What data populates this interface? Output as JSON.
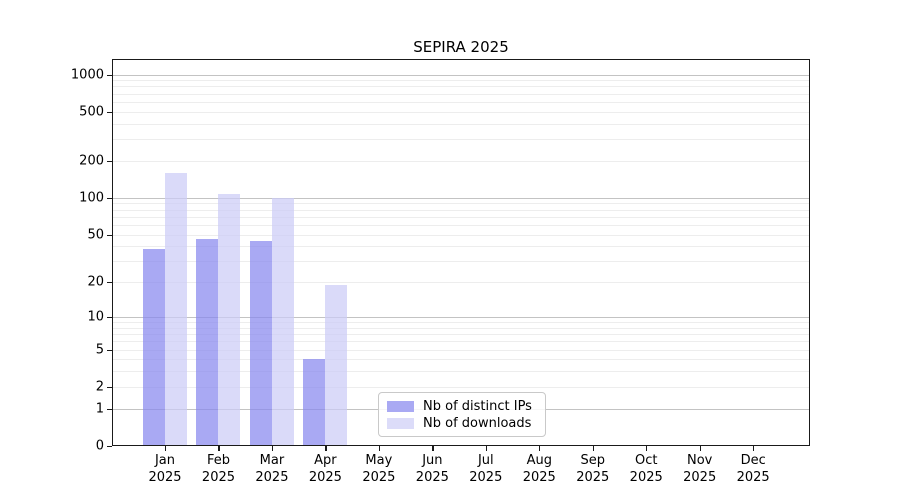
{
  "title": "SEPIRA 2025",
  "chart_data": {
    "type": "bar",
    "title": "SEPIRA 2025",
    "x_categories": [
      "Jan 2025",
      "Feb 2025",
      "Mar 2025",
      "Apr 2025",
      "May 2025",
      "Jun 2025",
      "Jul 2025",
      "Aug 2025",
      "Sep 2025",
      "Oct 2025",
      "Nov 2025",
      "Dec 2025"
    ],
    "series": [
      {
        "name": "Nb of distinct IPs",
        "color": "#8888ee",
        "fill_opacity": 0.72,
        "values": [
          38,
          46,
          44,
          4,
          null,
          null,
          null,
          null,
          null,
          null,
          null,
          null
        ]
      },
      {
        "name": "Nb of downloads",
        "color": "#ccccf7",
        "fill_opacity": 0.72,
        "values": [
          158,
          107,
          100,
          19,
          null,
          null,
          null,
          null,
          null,
          null,
          null,
          null
        ]
      }
    ],
    "yscale": "log1p",
    "ylim": [
      0,
      1000
    ],
    "ytick_labels": [
      1000,
      500,
      200,
      100,
      50,
      20,
      10,
      5,
      2,
      1,
      0
    ],
    "major_gridlines": [
      1,
      10,
      100,
      1000
    ],
    "minor_gridlines": [
      2,
      3,
      4,
      5,
      6,
      7,
      8,
      9,
      20,
      30,
      40,
      50,
      60,
      70,
      80,
      90,
      200,
      300,
      400,
      500,
      600,
      700,
      800,
      900
    ],
    "grid": "horizontal",
    "legend_position": "lower-center"
  },
  "legend": {
    "items": [
      {
        "label": "Nb of distinct IPs",
        "swatch_color": "#a9a9f3"
      },
      {
        "label": "Nb of downloads",
        "swatch_color": "#dcdcf9"
      }
    ]
  },
  "colors": {
    "series_dark": "#8888ee",
    "series_light": "#ccccf7",
    "grid_major": "#c3c3c3",
    "grid_minor": "#ededed",
    "axis": "#1a1a1a"
  }
}
